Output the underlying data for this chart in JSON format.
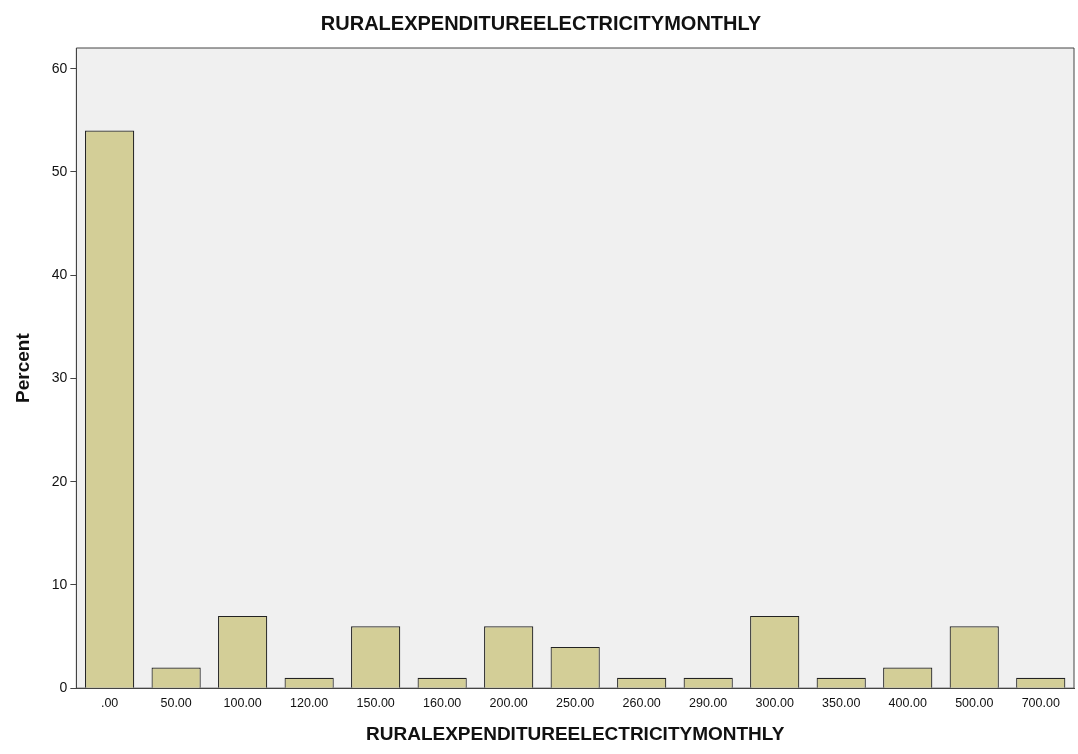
{
  "chart_data": {
    "type": "bar",
    "title": "RURALEXPENDITUREELECTRICITYMONTHLY",
    "xlabel": "RURALEXPENDITUREELECTRICITYMONTHLY",
    "ylabel": "Percent",
    "categories": [
      ".00",
      "50.00",
      "100.00",
      "120.00",
      "150.00",
      "160.00",
      "200.00",
      "250.00",
      "260.00",
      "290.00",
      "300.00",
      "350.00",
      "400.00",
      "500.00",
      "700.00"
    ],
    "values": [
      54,
      2,
      7,
      1,
      6,
      1,
      6,
      4,
      1,
      1,
      7,
      1,
      2,
      6,
      1
    ],
    "color": "#d3ce97",
    "ylim": [
      0,
      62
    ],
    "yticks": [
      0,
      10,
      20,
      30,
      40,
      50,
      60
    ],
    "grid": false,
    "legend": false
  }
}
